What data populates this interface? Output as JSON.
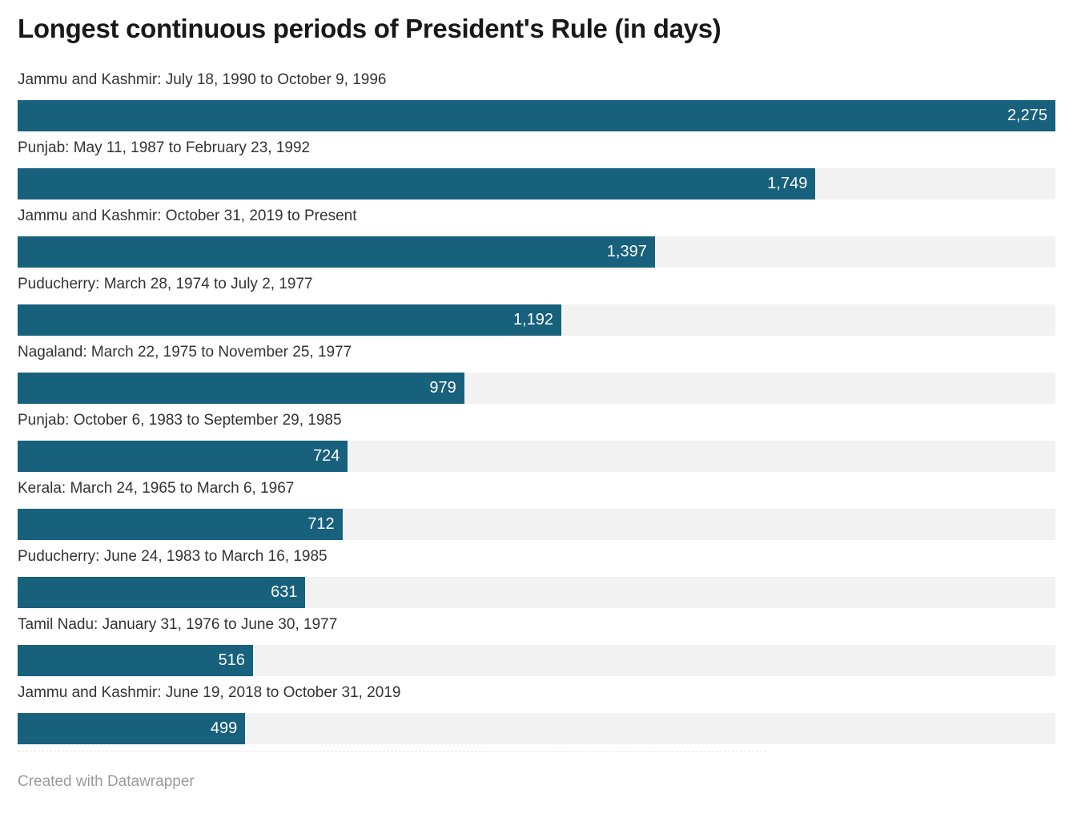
{
  "chart_data": {
    "type": "bar",
    "title": "Longest continuous periods of President's Rule (in days)",
    "orientation": "horizontal",
    "value_axis_max": 2275,
    "bar_color": "#17617d",
    "track_color": "#f2f2f2",
    "value_label_color": "#ffffff",
    "grid": false,
    "legend": false,
    "categories": [
      "Jammu and Kashmir: July 18, 1990 to October 9, 1996",
      "Punjab: May 11, 1987 to February 23, 1992",
      "Jammu and Kashmir: October 31, 2019 to Present",
      "Puducherry: March 28, 1974 to July 2, 1977",
      "Nagaland: March 22, 1975 to November 25, 1977",
      "Punjab: October 6, 1983 to September 29, 1985",
      "Kerala: March 24, 1965 to March 6, 1967",
      "Puducherry: June 24, 1983 to March 16, 1985",
      "Tamil Nadu: January 31, 1976 to June 30, 1977",
      "Jammu and Kashmir: June 19, 2018 to October 31, 2019"
    ],
    "values": [
      2275,
      1749,
      1397,
      1192,
      979,
      724,
      712,
      631,
      516,
      499
    ],
    "value_labels": [
      "2,275",
      "1,749",
      "1,397",
      "1,192",
      "979",
      "724",
      "712",
      "631",
      "516",
      "499"
    ]
  },
  "footer": {
    "credit": "Created with Datawrapper"
  }
}
